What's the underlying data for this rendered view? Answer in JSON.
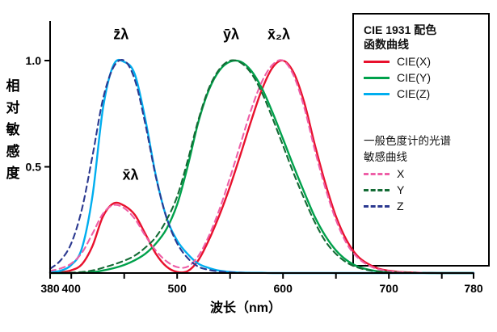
{
  "figure": {
    "y_axis_title": "相对敏感度",
    "x_axis_title": "波长（nm）",
    "y_ticks": [
      {
        "v": 1.0,
        "label": "1.0"
      },
      {
        "v": 0.5,
        "label": "0.5"
      }
    ],
    "x_ticks": [
      {
        "wl": 380,
        "label": "380"
      },
      {
        "wl": 400,
        "label": "400"
      },
      {
        "wl": 450,
        "label": ""
      },
      {
        "wl": 500,
        "label": "500"
      },
      {
        "wl": 550,
        "label": ""
      },
      {
        "wl": 600,
        "label": "600"
      },
      {
        "wl": 650,
        "label": ""
      },
      {
        "wl": 700,
        "label": "700"
      },
      {
        "wl": 750,
        "label": ""
      },
      {
        "wl": 780,
        "label": "780"
      }
    ],
    "annotations": [
      {
        "text": "z̄λ",
        "wl": 447,
        "v": 1.1
      },
      {
        "text": "x̄λ",
        "wl": 456,
        "v": 0.44
      },
      {
        "text": "ȳλ",
        "wl": 551,
        "v": 1.1
      },
      {
        "text": "x̄₂λ",
        "wl": 596,
        "v": 1.1
      }
    ],
    "axis_color": "#000000"
  },
  "legend": {
    "title_line1": "CIE 1931 配色",
    "title_line2": "函数曲线",
    "solid": [
      {
        "label": "CIE(X)",
        "color": "#e8112d"
      },
      {
        "label": "CIE(Y)",
        "color": "#00a14b"
      },
      {
        "label": "CIE(Z)",
        "color": "#00aeef"
      }
    ],
    "subtitle_line1": "一般色度计的光谱",
    "subtitle_line2": "敏感曲线",
    "dashed": [
      {
        "label": "X",
        "color": "#ee5fa7"
      },
      {
        "label": "Y",
        "color": "#146b35"
      },
      {
        "label": "Z",
        "color": "#2b3990"
      }
    ]
  },
  "chart_data": {
    "type": "line",
    "title": "CIE 1931 配色函数曲线与一般色度计的光谱敏感曲线",
    "xlabel": "波长（nm）",
    "ylabel": "相对敏感度",
    "xlim": [
      380,
      780
    ],
    "ylim": [
      0,
      1.15
    ],
    "grid": false,
    "legend_position": "right",
    "x": [
      380,
      390,
      400,
      410,
      420,
      430,
      440,
      450,
      460,
      470,
      480,
      490,
      500,
      510,
      520,
      530,
      540,
      550,
      560,
      570,
      580,
      590,
      600,
      610,
      620,
      630,
      640,
      650,
      660,
      670,
      680,
      690,
      700,
      710,
      720,
      730,
      740,
      750,
      760,
      770,
      780
    ],
    "series": [
      {
        "name": "CIE(X)",
        "style": "solid",
        "color": "#e8112d",
        "values": [
          0.001,
          0.004,
          0.013,
          0.041,
          0.127,
          0.267,
          0.328,
          0.317,
          0.274,
          0.184,
          0.09,
          0.03,
          0.005,
          0.009,
          0.06,
          0.156,
          0.273,
          0.408,
          0.56,
          0.717,
          0.863,
          0.966,
          1.0,
          0.944,
          0.804,
          0.605,
          0.422,
          0.267,
          0.155,
          0.082,
          0.044,
          0.021,
          0.011,
          0.005,
          0.003,
          0.001,
          0.001,
          0.0,
          0.0,
          0.0,
          0.0
        ]
      },
      {
        "name": "CIE(Y)",
        "style": "solid",
        "color": "#00a14b",
        "values": [
          0.0,
          0.0,
          0.0,
          0.001,
          0.004,
          0.012,
          0.023,
          0.038,
          0.06,
          0.091,
          0.139,
          0.208,
          0.323,
          0.503,
          0.71,
          0.862,
          0.954,
          0.995,
          0.995,
          0.952,
          0.87,
          0.757,
          0.631,
          0.503,
          0.381,
          0.265,
          0.175,
          0.107,
          0.061,
          0.032,
          0.017,
          0.008,
          0.004,
          0.002,
          0.001,
          0.001,
          0.0,
          0.0,
          0.0,
          0.0,
          0.0
        ]
      },
      {
        "name": "CIE(Z)",
        "style": "solid",
        "color": "#00aeef",
        "values": [
          0.004,
          0.011,
          0.038,
          0.116,
          0.362,
          0.777,
          0.98,
          0.994,
          0.936,
          0.722,
          0.456,
          0.261,
          0.153,
          0.089,
          0.044,
          0.024,
          0.011,
          0.005,
          0.002,
          0.001,
          0.001,
          0.0,
          0.0,
          0.0,
          0.0,
          0.0,
          0.0,
          0.0,
          0.0,
          0.0,
          0.0,
          0.0,
          0.0,
          0.0,
          0.0,
          0.0,
          0.0,
          0.0,
          0.0,
          0.0,
          0.0
        ]
      },
      {
        "name": "X",
        "style": "dashed",
        "color": "#ee5fa7",
        "values": [
          0.01,
          0.022,
          0.045,
          0.095,
          0.185,
          0.28,
          0.32,
          0.305,
          0.255,
          0.175,
          0.105,
          0.055,
          0.028,
          0.03,
          0.08,
          0.175,
          0.3,
          0.45,
          0.61,
          0.77,
          0.9,
          0.98,
          1.0,
          0.93,
          0.78,
          0.58,
          0.4,
          0.25,
          0.14,
          0.075,
          0.038,
          0.018,
          0.009,
          0.004,
          0.002,
          0.001,
          0.0,
          0.0,
          0.0,
          0.0,
          0.0
        ]
      },
      {
        "name": "Y",
        "style": "dashed",
        "color": "#146b35",
        "values": [
          0.0,
          0.001,
          0.002,
          0.005,
          0.012,
          0.025,
          0.04,
          0.058,
          0.082,
          0.12,
          0.17,
          0.25,
          0.36,
          0.53,
          0.72,
          0.87,
          0.96,
          1.0,
          0.99,
          0.94,
          0.85,
          0.73,
          0.6,
          0.47,
          0.35,
          0.24,
          0.15,
          0.09,
          0.05,
          0.027,
          0.014,
          0.007,
          0.003,
          0.001,
          0.001,
          0.0,
          0.0,
          0.0,
          0.0,
          0.0,
          0.0
        ]
      },
      {
        "name": "Z",
        "style": "dashed",
        "color": "#2b3990",
        "values": [
          0.02,
          0.06,
          0.14,
          0.3,
          0.55,
          0.82,
          0.97,
          1.0,
          0.91,
          0.7,
          0.45,
          0.26,
          0.14,
          0.07,
          0.03,
          0.015,
          0.007,
          0.003,
          0.001,
          0.0,
          0.0,
          0.0,
          0.0,
          0.0,
          0.0,
          0.0,
          0.0,
          0.0,
          0.0,
          0.0,
          0.0,
          0.0,
          0.0,
          0.0,
          0.0,
          0.0,
          0.0,
          0.0,
          0.0,
          0.0,
          0.0
        ]
      }
    ]
  }
}
